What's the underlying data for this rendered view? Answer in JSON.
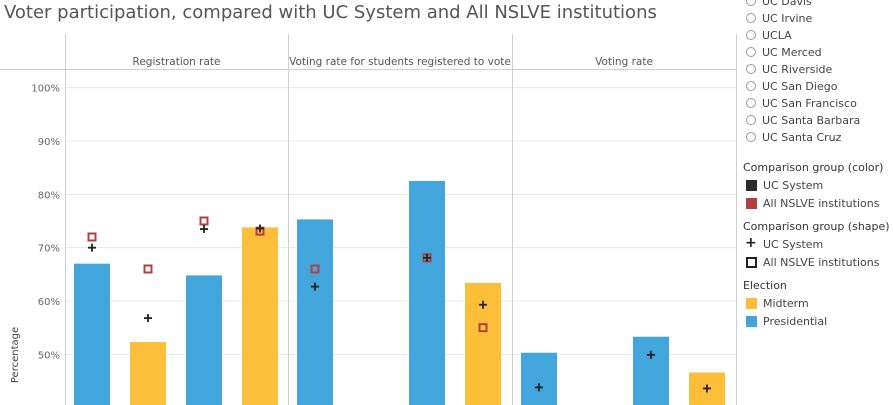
{
  "title": "Voter participation, compared with UC System and All NSLVE institutions",
  "colors": {
    "presidential": "#42a6dd",
    "midterm": "#fdbf3a",
    "uc_system_marker": "#222222",
    "nslve_marker": "#b3403e",
    "gridline": "#e8e8e8",
    "divider": "#cfcfcf"
  },
  "legend": {
    "campus_radio_items": [
      "UC Davis",
      "UC Irvine",
      "UCLA",
      "UC Merced",
      "UC Riverside",
      "UC San Diego",
      "UC San Francisco",
      "UC Santa Barbara",
      "UC Santa Cruz"
    ],
    "color_group": {
      "title": "Comparison group (color)",
      "items": [
        {
          "label": "UC System",
          "color": "#2b2b2b"
        },
        {
          "label": "All NSLVE institutions",
          "color": "#b3403e"
        }
      ]
    },
    "shape_group": {
      "title": "Comparison group (shape)",
      "items": [
        {
          "label": "UC System",
          "shape": "plus"
        },
        {
          "label": "All NSLVE institutions",
          "shape": "square"
        }
      ]
    },
    "election_group": {
      "title": "Election",
      "items": [
        {
          "label": "Midterm",
          "color": "#fdbf3a"
        },
        {
          "label": "Presidential",
          "color": "#42a6dd"
        }
      ]
    }
  },
  "chart_data": {
    "type": "bar",
    "ylabel": "Percentage",
    "ylim": [
      40.5,
      103.5
    ],
    "yticks": [
      50,
      60,
      70,
      80,
      90,
      100
    ],
    "ytick_labels": [
      "50%",
      "60%",
      "70%",
      "80%",
      "90%",
      "100%"
    ],
    "grid": true,
    "legend_position": "right",
    "panels": [
      {
        "title": "Registration rate",
        "bars": [
          {
            "election": "Presidential",
            "value": 67.0,
            "uc_system": 70.0,
            "nslve": 72.0
          },
          {
            "election": "Midterm",
            "value": 52.3,
            "uc_system": 56.8,
            "nslve": 66.0
          },
          {
            "election": "Presidential",
            "value": 64.8,
            "uc_system": 73.5,
            "nslve": 75.0
          },
          {
            "election": "Midterm",
            "value": 73.8,
            "uc_system": 73.6,
            "nslve": 73.1
          }
        ]
      },
      {
        "title": "Voting rate for students registered to vote",
        "bars": [
          {
            "election": "Presidential",
            "value": 75.3,
            "uc_system": 62.7,
            "nslve": 66.0
          },
          {
            "election": "Midterm",
            "value": null,
            "uc_system": null,
            "nslve": null
          },
          {
            "election": "Presidential",
            "value": 82.5,
            "uc_system": 68.1,
            "nslve": 68.1
          },
          {
            "election": "Midterm",
            "value": 63.4,
            "uc_system": 59.3,
            "nslve": 55.0
          }
        ]
      },
      {
        "title": "Voting rate",
        "bars": [
          {
            "election": "Presidential",
            "value": 50.3,
            "uc_system": 43.8,
            "nslve": null
          },
          {
            "election": "Midterm",
            "value": null,
            "uc_system": null,
            "nslve": null
          },
          {
            "election": "Presidential",
            "value": 53.3,
            "uc_system": 49.9,
            "nslve": null
          },
          {
            "election": "Midterm",
            "value": 46.6,
            "uc_system": 43.6,
            "nslve": null
          }
        ]
      }
    ]
  }
}
